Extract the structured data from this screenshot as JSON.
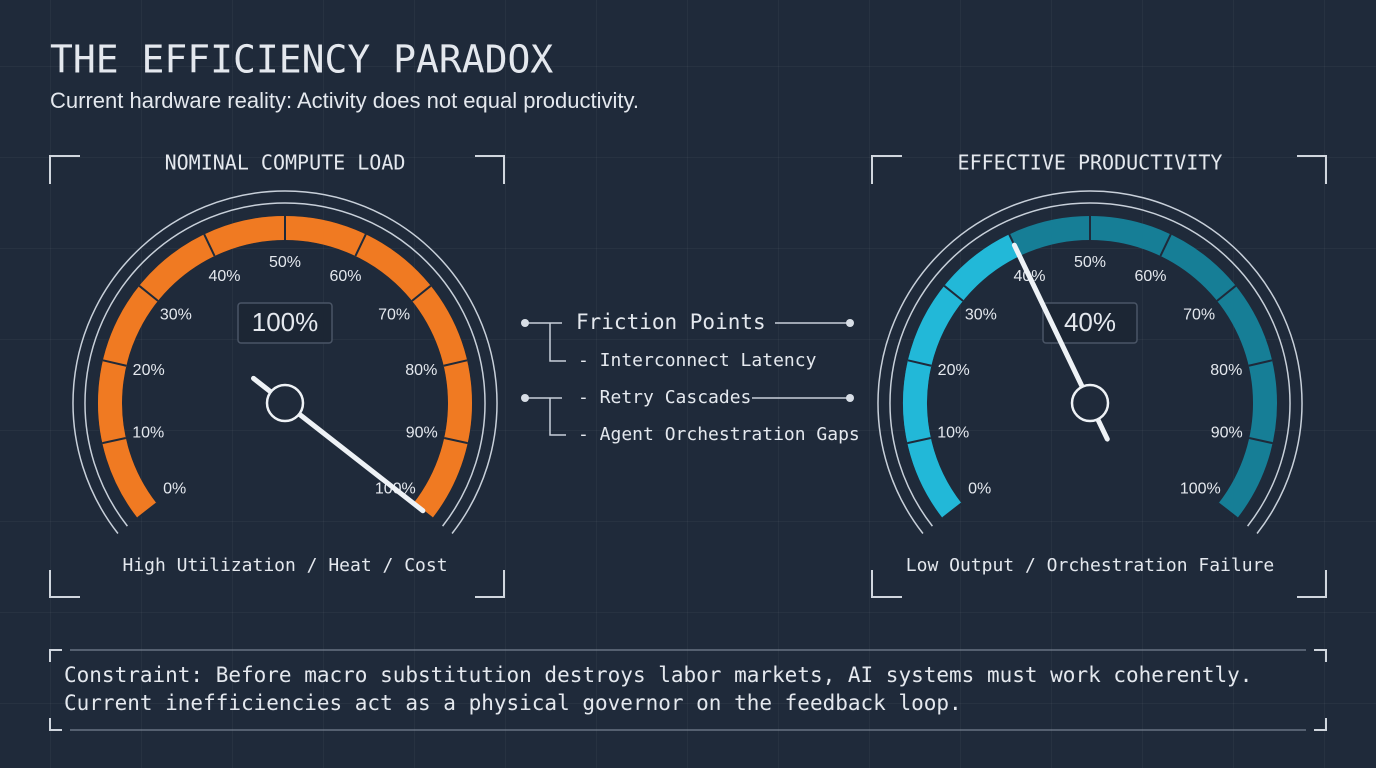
{
  "header": {
    "title": "THE EFFICIENCY PARADOX",
    "subtitle": "Current hardware reality: Activity does not equal productivity."
  },
  "gauges": [
    {
      "title": "NOMINAL COMPUTE LOAD",
      "value": 100,
      "value_label": "100%",
      "min": 0,
      "max": 100,
      "color": "#f07a22",
      "track_color": "#7a3f14",
      "ticks": [
        {
          "value": 0,
          "label": "0%"
        },
        {
          "value": 10,
          "label": "10%"
        },
        {
          "value": 20,
          "label": "20%"
        },
        {
          "value": 30,
          "label": "30%"
        },
        {
          "value": 40,
          "label": "40%"
        },
        {
          "value": 50,
          "label": "50%"
        },
        {
          "value": 60,
          "label": "60%"
        },
        {
          "value": 70,
          "label": "70%"
        },
        {
          "value": 80,
          "label": "80%"
        },
        {
          "value": 90,
          "label": "90%"
        },
        {
          "value": 100,
          "label": "100%"
        }
      ],
      "caption": "High Utilization / Heat / Cost"
    },
    {
      "title": "EFFECTIVE PRODUCTIVITY",
      "value": 40,
      "value_label": "40%",
      "min": 0,
      "max": 100,
      "color": "#22b8d8",
      "track_color": "#167e96",
      "ticks": [
        {
          "value": 0,
          "label": "0%"
        },
        {
          "value": 10,
          "label": "10%"
        },
        {
          "value": 20,
          "label": "20%"
        },
        {
          "value": 30,
          "label": "30%"
        },
        {
          "value": 40,
          "label": "40%"
        },
        {
          "value": 50,
          "label": "50%"
        },
        {
          "value": 60,
          "label": "60%"
        },
        {
          "value": 70,
          "label": "70%"
        },
        {
          "value": 80,
          "label": "80%"
        },
        {
          "value": 90,
          "label": "90%"
        },
        {
          "value": 100,
          "label": "100%"
        }
      ],
      "caption": "Low Output / Orchestration Failure"
    }
  ],
  "friction": {
    "title": "Friction Points",
    "items": [
      "- Interconnect Latency",
      "- Retry Cascades",
      "- Agent Orchestration Gaps"
    ]
  },
  "constraint": {
    "lines": [
      "Constraint: Before macro substitution destroys labor markets, AI systems must work coherently.",
      "Current inefficiencies act as a physical governor on the feedback loop."
    ]
  }
}
